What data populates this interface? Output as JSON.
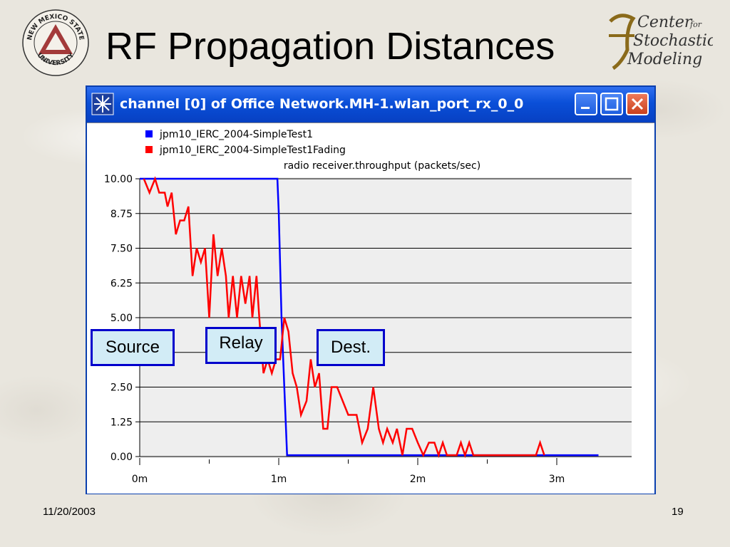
{
  "slide": {
    "title": "RF Propagation Distances",
    "date": "11/20/2003",
    "page_number": "19",
    "logo_left_text": [
      "NEW MEXICO STATE",
      "UNIVERSITY"
    ],
    "logo_right_text": [
      "Center",
      "for",
      "Stochastic",
      "Modeling"
    ]
  },
  "window": {
    "title": "channel [0] of Office Network.MH-1.wlan_port_rx_0_0"
  },
  "labels": {
    "source": "Source",
    "relay": "Relay",
    "dest": "Dest."
  },
  "colors": {
    "series1": "#0000ff",
    "series2": "#ff0000",
    "titlebar": "#0a4fd8",
    "box_fill": "#d2ecf6",
    "box_border": "#0000cc"
  },
  "chart_data": {
    "type": "line",
    "title": "radio receiver.throughput (packets/sec)",
    "xlabel": "",
    "ylabel": "",
    "xlim": [
      0,
      3.5
    ],
    "ylim": [
      0,
      10
    ],
    "x_unit": "minutes",
    "y_ticks": [
      "10.00",
      "8.75",
      "7.50",
      "6.25",
      "5.00",
      "3.75",
      "2.50",
      "1.25",
      "0.00"
    ],
    "y_tick_values": [
      10,
      8.75,
      7.5,
      6.25,
      5,
      3.75,
      2.5,
      1.25,
      0
    ],
    "x_ticks": [
      "0m",
      "1m",
      "2m",
      "3m"
    ],
    "x_tick_values": [
      0,
      1,
      2,
      3
    ],
    "grid": "horizontal",
    "legend_position": "top-left",
    "series": [
      {
        "name": "jpm10_IERC_2004-SimpleTest1",
        "color": "#0000ff",
        "points": [
          [
            0,
            10
          ],
          [
            0.99,
            10
          ],
          [
            1.0,
            8.8
          ],
          [
            1.02,
            5.0
          ],
          [
            1.04,
            2.5
          ],
          [
            1.06,
            0.05
          ],
          [
            3.3,
            0.05
          ]
        ]
      },
      {
        "name": "jpm10_IERC_2004-SimpleTest1Fading",
        "color": "#ff0000",
        "points": [
          [
            0.03,
            10
          ],
          [
            0.07,
            9.5
          ],
          [
            0.11,
            10
          ],
          [
            0.14,
            9.5
          ],
          [
            0.18,
            9.5
          ],
          [
            0.2,
            9.0
          ],
          [
            0.23,
            9.5
          ],
          [
            0.26,
            8.0
          ],
          [
            0.29,
            8.5
          ],
          [
            0.32,
            8.5
          ],
          [
            0.35,
            9.0
          ],
          [
            0.38,
            6.5
          ],
          [
            0.41,
            7.5
          ],
          [
            0.44,
            7.0
          ],
          [
            0.47,
            7.5
          ],
          [
            0.5,
            5.0
          ],
          [
            0.53,
            8.0
          ],
          [
            0.56,
            6.5
          ],
          [
            0.59,
            7.5
          ],
          [
            0.62,
            6.5
          ],
          [
            0.64,
            5.0
          ],
          [
            0.67,
            6.5
          ],
          [
            0.7,
            5.0
          ],
          [
            0.73,
            6.5
          ],
          [
            0.76,
            5.5
          ],
          [
            0.79,
            6.5
          ],
          [
            0.81,
            5.0
          ],
          [
            0.84,
            6.5
          ],
          [
            0.86,
            5.0
          ],
          [
            0.89,
            3.0
          ],
          [
            0.92,
            3.5
          ],
          [
            0.95,
            3.0
          ],
          [
            0.98,
            3.5
          ],
          [
            1.01,
            3.5
          ],
          [
            1.04,
            5.0
          ],
          [
            1.07,
            4.5
          ],
          [
            1.1,
            3.0
          ],
          [
            1.13,
            2.5
          ],
          [
            1.16,
            1.5
          ],
          [
            1.2,
            2.0
          ],
          [
            1.23,
            3.5
          ],
          [
            1.26,
            2.5
          ],
          [
            1.29,
            3.0
          ],
          [
            1.32,
            1.0
          ],
          [
            1.35,
            1.0
          ],
          [
            1.38,
            2.5
          ],
          [
            1.42,
            2.5
          ],
          [
            1.46,
            2.0
          ],
          [
            1.5,
            1.5
          ],
          [
            1.56,
            1.5
          ],
          [
            1.6,
            0.5
          ],
          [
            1.64,
            1.0
          ],
          [
            1.68,
            2.5
          ],
          [
            1.72,
            1.0
          ],
          [
            1.75,
            0.5
          ],
          [
            1.78,
            1.0
          ],
          [
            1.82,
            0.5
          ],
          [
            1.85,
            1.0
          ],
          [
            1.89,
            0.05
          ],
          [
            1.92,
            1.0
          ],
          [
            1.96,
            1.0
          ],
          [
            2.0,
            0.5
          ],
          [
            2.04,
            0.05
          ],
          [
            2.08,
            0.5
          ],
          [
            2.12,
            0.5
          ],
          [
            2.15,
            0.05
          ],
          [
            2.18,
            0.5
          ],
          [
            2.21,
            0.05
          ],
          [
            2.28,
            0.05
          ],
          [
            2.31,
            0.5
          ],
          [
            2.34,
            0.05
          ],
          [
            2.37,
            0.5
          ],
          [
            2.4,
            0.05
          ],
          [
            2.85,
            0.05
          ],
          [
            2.88,
            0.5
          ],
          [
            2.91,
            0.05
          ]
        ]
      }
    ]
  }
}
